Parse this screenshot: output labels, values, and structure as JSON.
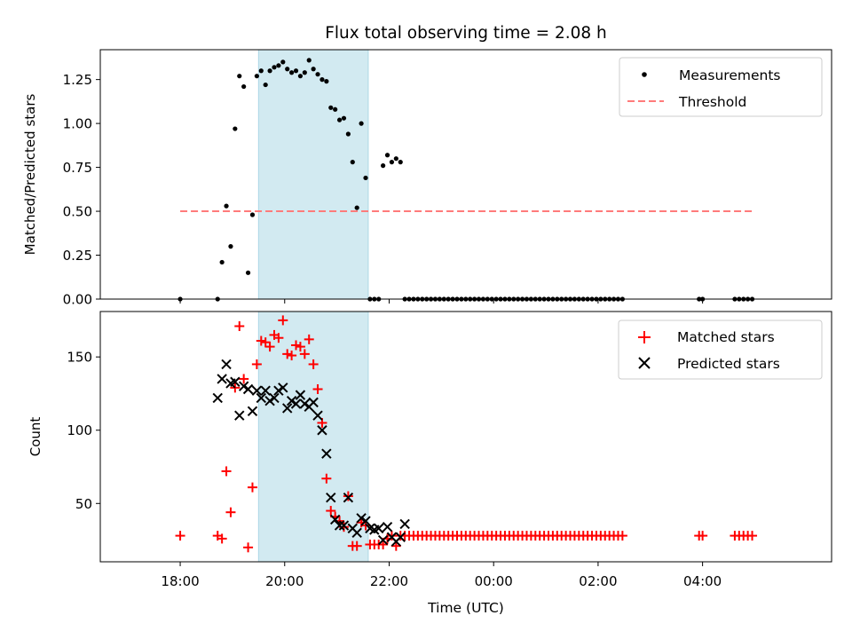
{
  "title": "Flux total observing time = 2.08 h",
  "colors": {
    "measurement": "#000000",
    "threshold": "#ff7b7b",
    "matched": "#ff0000",
    "predicted": "#000000",
    "highlight": "#add8e6"
  },
  "chart_data": [
    {
      "type": "scatter",
      "panel": "top",
      "ylabel": "Matched/Predicted stars",
      "xlabel": "",
      "ylim": [
        0,
        1.42
      ],
      "xlim_hours": [
        16.47,
        30.47
      ],
      "yticks": [
        0.0,
        0.25,
        0.5,
        0.75,
        1.0,
        1.25
      ],
      "ytick_labels": [
        "0.00",
        "0.25",
        "0.50",
        "0.75",
        "1.00",
        "1.25"
      ],
      "highlight_interval": [
        "19:30",
        "21:36"
      ],
      "legend": [
        "Measurements",
        "Threshold"
      ],
      "legend_position": "top-right",
      "threshold": {
        "value": 0.5,
        "x_range": [
          "18:00",
          "05:00"
        ],
        "name": "Threshold"
      },
      "series": [
        {
          "name": "Measurements",
          "x": [
            "18:00",
            "18:43",
            "18:48",
            "18:53",
            "18:58",
            "19:03",
            "19:08",
            "19:13",
            "19:18",
            "19:23",
            "19:28",
            "19:33",
            "19:38",
            "19:43",
            "19:48",
            "19:53",
            "19:58",
            "20:03",
            "20:08",
            "20:13",
            "20:18",
            "20:23",
            "20:28",
            "20:33",
            "20:38",
            "20:43",
            "20:48",
            "20:53",
            "20:58",
            "21:03",
            "21:08",
            "21:13",
            "21:18",
            "21:23",
            "21:28",
            "21:33",
            "21:38",
            "21:43",
            "21:48",
            "21:53",
            "21:58",
            "22:03",
            "22:08",
            "22:13",
            "22:18",
            "22:23",
            "22:28",
            "22:33",
            "22:38",
            "22:43",
            "22:48",
            "22:53",
            "22:58",
            "23:03",
            "23:08",
            "23:13",
            "23:18",
            "23:23",
            "23:28",
            "23:33",
            "23:38",
            "23:43",
            "23:48",
            "23:53",
            "23:58",
            "00:03",
            "00:08",
            "00:13",
            "00:18",
            "00:23",
            "00:28",
            "00:33",
            "00:38",
            "00:43",
            "00:48",
            "00:53",
            "00:58",
            "01:03",
            "01:08",
            "01:13",
            "01:18",
            "01:23",
            "01:28",
            "01:33",
            "01:38",
            "01:43",
            "01:48",
            "01:53",
            "01:58",
            "02:03",
            "02:08",
            "02:13",
            "02:18",
            "02:23",
            "02:28",
            "03:56",
            "04:00",
            "04:37",
            "04:42",
            "04:47",
            "04:52",
            "04:57"
          ],
          "y": [
            0,
            0,
            0.21,
            0.53,
            0.3,
            0.97,
            1.27,
            1.21,
            0.15,
            0.48,
            1.27,
            1.3,
            1.22,
            1.3,
            1.32,
            1.33,
            1.35,
            1.31,
            1.29,
            1.3,
            1.27,
            1.29,
            1.36,
            1.31,
            1.28,
            1.25,
            1.24,
            1.09,
            1.08,
            1.02,
            1.03,
            0.94,
            0.78,
            0.52,
            1.0,
            0.69,
            0,
            0,
            0,
            0.76,
            0.82,
            0.78,
            0.8,
            0.78,
            0,
            0,
            0,
            0,
            0,
            0,
            0,
            0,
            0,
            0,
            0,
            0,
            0,
            0,
            0,
            0,
            0,
            0,
            0,
            0,
            0,
            0,
            0,
            0,
            0,
            0,
            0,
            0,
            0,
            0,
            0,
            0,
            0,
            0,
            0,
            0,
            0,
            0,
            0,
            0,
            0,
            0,
            0,
            0,
            0,
            0,
            0,
            0,
            0,
            0,
            0,
            0,
            0,
            0,
            0,
            0,
            0,
            0
          ]
        }
      ]
    },
    {
      "type": "scatter",
      "panel": "bottom",
      "xlabel": "Time (UTC)",
      "ylabel": "Count",
      "ylim": [
        10.2,
        181
      ],
      "xlim_hours": [
        16.47,
        30.47
      ],
      "yticks": [
        50,
        100,
        150
      ],
      "ytick_labels": [
        "50",
        "100",
        "150"
      ],
      "xticks": [
        "18:00",
        "20:00",
        "22:00",
        "00:00",
        "02:00",
        "04:00"
      ],
      "highlight_interval": [
        "19:30",
        "21:36"
      ],
      "legend": [
        "Matched stars",
        "Predicted stars"
      ],
      "legend_position": "top-right",
      "series": [
        {
          "name": "Matched stars",
          "x": [
            "18:00",
            "18:43",
            "18:48",
            "18:53",
            "18:58",
            "19:03",
            "19:08",
            "19:13",
            "19:18",
            "19:23",
            "19:28",
            "19:33",
            "19:38",
            "19:43",
            "19:48",
            "19:53",
            "19:58",
            "20:03",
            "20:08",
            "20:13",
            "20:18",
            "20:23",
            "20:28",
            "20:33",
            "20:38",
            "20:43",
            "20:48",
            "20:53",
            "20:58",
            "21:03",
            "21:08",
            "21:13",
            "21:18",
            "21:23",
            "21:28",
            "21:33",
            "21:38",
            "21:43",
            "21:48",
            "21:53",
            "21:58",
            "22:03",
            "22:08",
            "22:13",
            "22:18",
            "22:23",
            "22:28",
            "22:33",
            "22:38",
            "22:43",
            "22:48",
            "22:53",
            "22:58",
            "23:03",
            "23:08",
            "23:13",
            "23:18",
            "23:23",
            "23:28",
            "23:33",
            "23:38",
            "23:43",
            "23:48",
            "23:53",
            "23:58",
            "00:03",
            "00:08",
            "00:13",
            "00:18",
            "00:23",
            "00:28",
            "00:33",
            "00:38",
            "00:43",
            "00:48",
            "00:53",
            "00:58",
            "01:03",
            "01:08",
            "01:13",
            "01:18",
            "01:23",
            "01:28",
            "01:33",
            "01:38",
            "01:43",
            "01:48",
            "01:53",
            "01:58",
            "02:03",
            "02:08",
            "02:13",
            "02:18",
            "02:23",
            "02:28",
            "03:56",
            "04:00",
            "04:37",
            "04:42",
            "04:47",
            "04:52",
            "04:57"
          ],
          "y": [
            28,
            28,
            26,
            72,
            44,
            129,
            171,
            135,
            20,
            61,
            145,
            161,
            160,
            157,
            165,
            163,
            175,
            152,
            151,
            158,
            157,
            152,
            162,
            145,
            128,
            105,
            67,
            45,
            41,
            38,
            34,
            55,
            21,
            21,
            37,
            35,
            22,
            22,
            22,
            22,
            26,
            28,
            21,
            28,
            28,
            28,
            28,
            28,
            28,
            28,
            28,
            28,
            28,
            28,
            28,
            28,
            28,
            28,
            28,
            28,
            28,
            28,
            28,
            28,
            28,
            28,
            28,
            28,
            28,
            28,
            28,
            28,
            28,
            28,
            28,
            28,
            28,
            28,
            28,
            28,
            28,
            28,
            28,
            28,
            28,
            28,
            28,
            28,
            28,
            28,
            28,
            28,
            28,
            28,
            28,
            28,
            28,
            28,
            28,
            28,
            28,
            28
          ]
        },
        {
          "name": "Predicted stars",
          "x": [
            "18:43",
            "18:48",
            "18:53",
            "18:58",
            "19:03",
            "19:08",
            "19:13",
            "19:18",
            "19:23",
            "19:28",
            "19:33",
            "19:38",
            "19:43",
            "19:48",
            "19:53",
            "19:58",
            "20:03",
            "20:08",
            "20:13",
            "20:18",
            "20:23",
            "20:28",
            "20:33",
            "20:38",
            "20:43",
            "20:48",
            "20:53",
            "20:58",
            "21:03",
            "21:08",
            "21:13",
            "21:18",
            "21:23",
            "21:28",
            "21:33",
            "21:38",
            "21:43",
            "21:48",
            "21:53",
            "21:58",
            "22:03",
            "22:08",
            "22:13",
            "22:18"
          ],
          "y": [
            122,
            135,
            145,
            132,
            133,
            110,
            130,
            128,
            113,
            127,
            122,
            127,
            120,
            122,
            127,
            129,
            115,
            120,
            118,
            124,
            118,
            116,
            119,
            110,
            100,
            84,
            54,
            39,
            35,
            35,
            54,
            33,
            30,
            40,
            38,
            33,
            32,
            33,
            25,
            34,
            27,
            24,
            27,
            36
          ]
        }
      ]
    }
  ]
}
